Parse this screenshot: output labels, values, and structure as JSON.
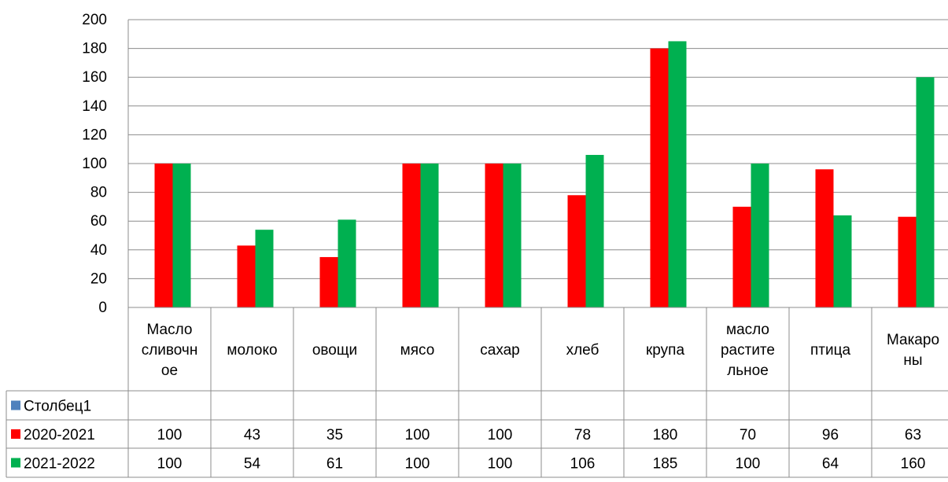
{
  "chart_data": {
    "type": "bar",
    "title": "",
    "xlabel": "",
    "ylabel": "",
    "ylim": [
      0,
      200
    ],
    "ytick_step": 20,
    "grid": true,
    "legend": "data-table-left",
    "categories": [
      "Масло сливочное",
      "молоко",
      "овощи",
      "мясо",
      "сахар",
      "хлеб",
      "крупа",
      "масло растительное",
      "птица",
      "Макароны"
    ],
    "category_lines": [
      [
        "Масло",
        "сливочн",
        "ое"
      ],
      [
        "молоко"
      ],
      [
        "овощи"
      ],
      [
        "мясо"
      ],
      [
        "сахар"
      ],
      [
        "хлеб"
      ],
      [
        "крупа"
      ],
      [
        "масло",
        "растите",
        "льное"
      ],
      [
        "птица"
      ],
      [
        "Макаро",
        "ны"
      ]
    ],
    "series": [
      {
        "name": "Столбец1",
        "color": "#4f81bd",
        "values": [
          null,
          null,
          null,
          null,
          null,
          null,
          null,
          null,
          null,
          null
        ]
      },
      {
        "name": "2020-2021",
        "color": "#ff0000",
        "values": [
          100,
          43,
          35,
          100,
          100,
          78,
          180,
          70,
          96,
          63
        ]
      },
      {
        "name": "2021-2022",
        "color": "#00b050",
        "values": [
          100,
          54,
          61,
          100,
          100,
          106,
          185,
          100,
          64,
          160
        ]
      }
    ]
  }
}
